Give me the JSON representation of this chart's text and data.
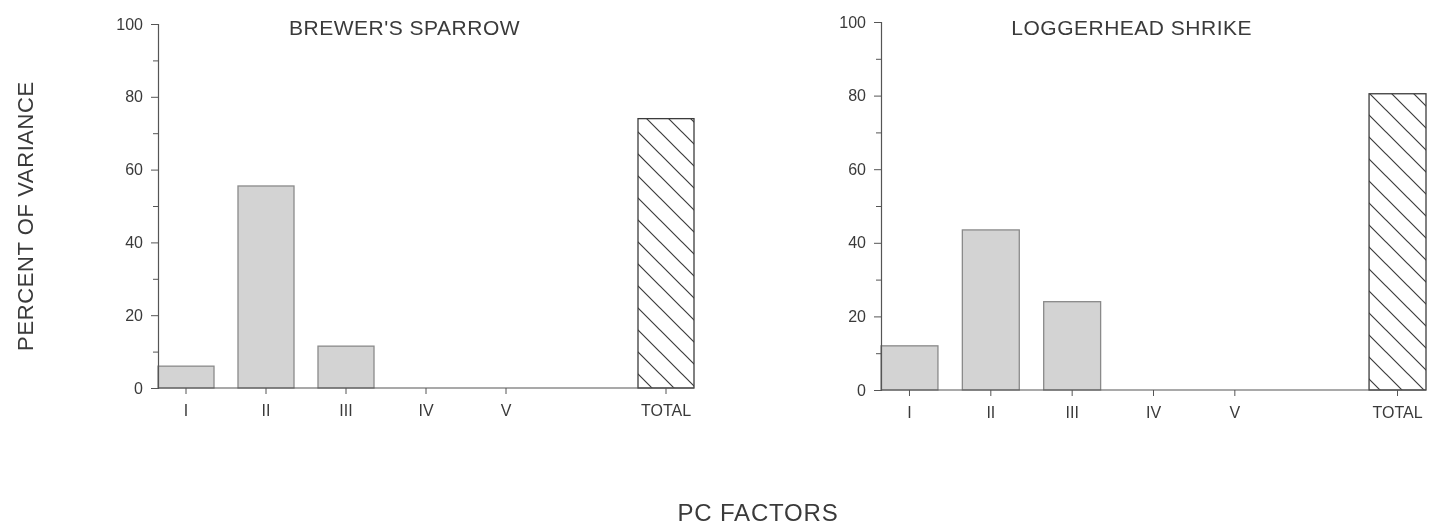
{
  "chart_data": [
    {
      "type": "bar",
      "title": "BREWER'S SPARROW",
      "ylabel": "PERCENT OF VARIANCE",
      "xlabel": "PC FACTORS",
      "categories": [
        "I",
        "II",
        "III",
        "IV",
        "V",
        null,
        "TOTAL"
      ],
      "series": [
        {
          "color": "#d3d3d3",
          "values": [
            6,
            55.5,
            11.5,
            0,
            0,
            null,
            null
          ]
        },
        {
          "color": "#3c3c3c",
          "values": [
            null,
            null,
            null,
            null,
            null,
            null,
            74
          ]
        }
      ],
      "ylim": [
        0,
        100
      ],
      "yticks": [
        0,
        {
          "value": 10,
          "label": null
        },
        20,
        {
          "value": 30,
          "label": null
        },
        40,
        {
          "value": 50,
          "label": null
        },
        60,
        {
          "value": 70,
          "label": null
        },
        80,
        {
          "value": 90,
          "label": null
        },
        100
      ]
    },
    {
      "type": "bar",
      "title": "LOGGERHEAD SHRIKE",
      "categories": [
        "I",
        "II",
        "III",
        "IV",
        "V",
        null,
        "TOTAL"
      ],
      "series": [
        {
          "color": "#d3d3d3",
          "values": [
            12,
            43.5,
            24,
            0,
            0,
            null,
            null
          ]
        },
        {
          "color": "#3c3c3c",
          "values": [
            null,
            null,
            null,
            null,
            null,
            null,
            80.5
          ]
        }
      ],
      "ylim": [
        0,
        100
      ],
      "yticks": [
        0,
        {
          "value": 10,
          "label": null
        },
        20,
        {
          "value": 30,
          "label": null
        },
        40,
        {
          "value": 50,
          "label": null
        },
        60,
        {
          "value": 70,
          "label": null
        },
        80,
        {
          "value": 90,
          "label": null
        },
        100
      ]
    }
  ]
}
